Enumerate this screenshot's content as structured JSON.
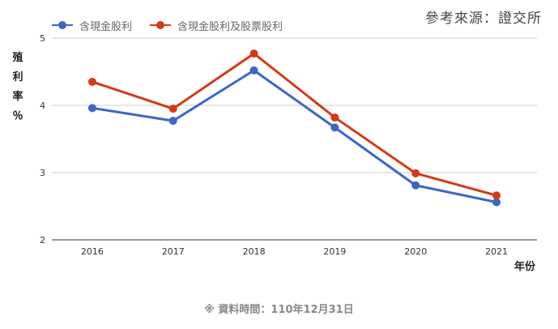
{
  "chart_data": {
    "type": "line",
    "title": "",
    "xlabel": "年份",
    "ylabel": "殖利率％",
    "ylabel_chars": [
      "殖",
      "利",
      "率",
      "％"
    ],
    "categories": [
      "2016",
      "2017",
      "2018",
      "2019",
      "2020",
      "2021"
    ],
    "yticks": [
      "5",
      "4",
      "3",
      "2"
    ],
    "ylim": [
      2,
      5
    ],
    "grid": true,
    "legend_position": "top-left",
    "series": [
      {
        "name": "含現金股利",
        "color": "#3c67c7",
        "values": [
          3.96,
          3.77,
          4.52,
          3.67,
          2.81,
          2.56
        ]
      },
      {
        "name": "含現金股利及股票股利",
        "color": "#d23b16",
        "values": [
          4.35,
          3.95,
          4.77,
          3.82,
          2.99,
          2.66
        ]
      }
    ]
  },
  "source_note": "參考來源：證交所",
  "footnote": "※ 資料時間：110年12月31日"
}
